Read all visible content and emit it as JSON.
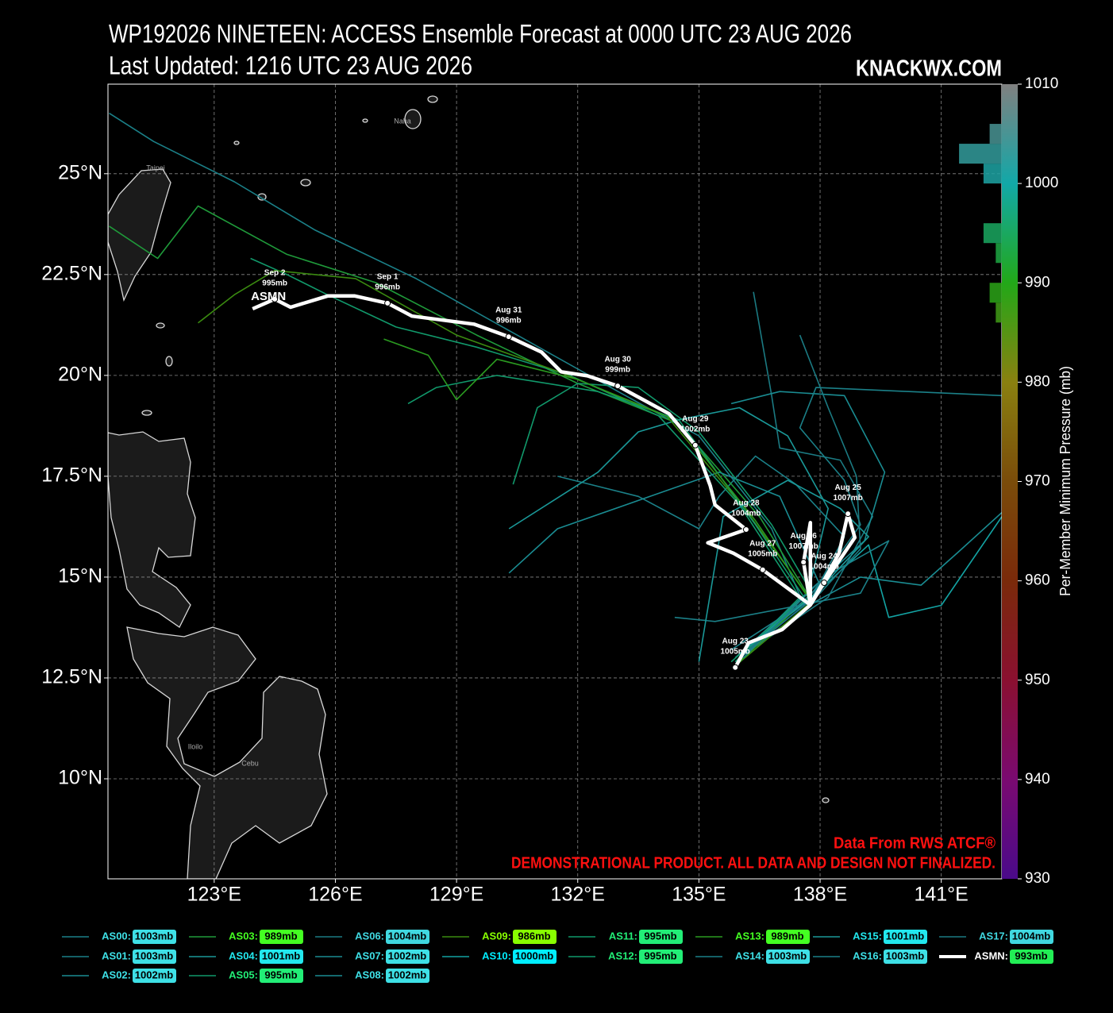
{
  "chart_data": {
    "type": "track-map",
    "title": "WP192026 NINETEEN: ACCESS Ensemble Forecast at 0000 UTC 23 AUG 2026",
    "subtitle": "Last Updated: 1216 UTC 23 AUG 2026",
    "brand": "KNACKWX.COM",
    "source": "Data From RWS ATCF®",
    "disclaimer": "DEMONSTRATIONAL PRODUCT. ALL DATA AND DESIGN NOT FINALIZED.",
    "places": [
      "Taipei",
      "Naha",
      "Iloilo",
      "Cebu"
    ],
    "xlim": [
      120.37,
      142.5
    ],
    "ylim": [
      7.52,
      27.22
    ],
    "xticks": [
      {
        "value": 123,
        "label": "123°E"
      },
      {
        "value": 126,
        "label": "126°E"
      },
      {
        "value": 129,
        "label": "129°E"
      },
      {
        "value": 132,
        "label": "132°E"
      },
      {
        "value": 135,
        "label": "135°E"
      },
      {
        "value": 138,
        "label": "138°E"
      },
      {
        "value": 141,
        "label": "141°E"
      }
    ],
    "yticks": [
      {
        "value": 10,
        "label": "10°N"
      },
      {
        "value": 12.5,
        "label": "12.5°N"
      },
      {
        "value": 15,
        "label": "15°N"
      },
      {
        "value": 17.5,
        "label": "17.5°N"
      },
      {
        "value": 20,
        "label": "20°N"
      },
      {
        "value": 22.5,
        "label": "22.5°N"
      },
      {
        "value": 25,
        "label": "25°N"
      }
    ],
    "grid": true,
    "colorbar": {
      "label": "Per-Member Minimum Pressure (mb)",
      "lim": [
        930,
        1010
      ],
      "ticks": [
        930,
        940,
        950,
        960,
        970,
        980,
        990,
        1000,
        1010
      ],
      "colormap": [
        "#4a0a8a",
        "#7a0a70",
        "#8a1030",
        "#7a2a0a",
        "#7a4c0a",
        "#8a8010",
        "#22a818",
        "#12a8a8",
        "#808080"
      ]
    },
    "histogram": {
      "bins": [
        986,
        988,
        990,
        992,
        994,
        996,
        998,
        1000,
        1002,
        1004,
        1006
      ],
      "counts": [
        1,
        2,
        0,
        1,
        3,
        0,
        0,
        3,
        7,
        2
      ]
    },
    "members": [
      {
        "label": "AS00:",
        "pressure": "1003mb",
        "color": "#1b8088",
        "badge": "#3ee0e6",
        "lon": [
          135.9,
          137.6,
          136.8,
          135.0,
          133.0,
          130.5,
          128.0,
          125.5,
          123.5,
          121.5,
          120.4
        ],
        "lat": [
          12.9,
          14.3,
          16.2,
          18.5,
          19.6,
          21.0,
          22.4,
          23.6,
          24.8,
          25.8,
          26.5
        ]
      },
      {
        "label": "AS01:",
        "pressure": "1003mb",
        "color": "#1b8088",
        "badge": "#3ee0e6",
        "lon": [
          135.8,
          137.8,
          138.6,
          137.4,
          136.4,
          135.5,
          135.0,
          133.5,
          131.5
        ],
        "lat": [
          13.2,
          14.5,
          16.0,
          17.3,
          18.0,
          17.0,
          16.2,
          17.0,
          17.5
        ]
      },
      {
        "label": "AS02:",
        "pressure": "1002mb",
        "color": "#1a8c92",
        "badge": "#3ee0e6",
        "lon": [
          136.0,
          137.9,
          139.0,
          140.5,
          141.4,
          142.5
        ],
        "lat": [
          13.0,
          14.4,
          15.0,
          14.8,
          15.6,
          16.6
        ]
      },
      {
        "label": "AS03:",
        "pressure": "989mb",
        "color": "#1f9a3a",
        "badge": "#44ff22",
        "lon": [
          135.9,
          137.8,
          136.5,
          134.5,
          132.0,
          129.5,
          127.0,
          124.8,
          122.6,
          121.6,
          120.4
        ],
        "lat": [
          12.8,
          14.4,
          16.5,
          18.8,
          19.8,
          21.0,
          22.3,
          23.0,
          24.2,
          22.9,
          23.7
        ]
      },
      {
        "label": "AS04:",
        "pressure": "1001mb",
        "color": "#1a9898",
        "badge": "#22e8ee",
        "lon": [
          136.1,
          137.7,
          138.2,
          137.2,
          136.0,
          134.5,
          133.5,
          132.5,
          130.3
        ],
        "lat": [
          13.1,
          14.6,
          16.7,
          18.5,
          19.2,
          18.9,
          18.6,
          17.6,
          16.2
        ]
      },
      {
        "label": "AS05:",
        "pressure": "995mb",
        "color": "#11996b",
        "badge": "#22ee77",
        "lon": [
          135.9,
          137.5,
          136.0,
          134.0,
          131.8,
          129.5,
          127.5,
          125.8,
          124.8,
          123.9
        ],
        "lat": [
          12.9,
          14.5,
          16.8,
          19.0,
          20.0,
          20.7,
          21.2,
          22.0,
          22.5,
          22.9
        ]
      },
      {
        "label": "AS06:",
        "pressure": "1004mb",
        "color": "#1b7a82",
        "badge": "#40d8e0",
        "lon": [
          136.0,
          138.2,
          139.3,
          138.5,
          137.0,
          136.8,
          136.35
        ],
        "lat": [
          13.0,
          14.5,
          16.5,
          17.9,
          18.2,
          19.5,
          22.07
        ]
      },
      {
        "label": "AS07:",
        "pressure": "1002mb",
        "color": "#1a8c92",
        "badge": "#3ee0e6",
        "lon": [
          135.9,
          138.0,
          139.1,
          139.6,
          138.6,
          137.0,
          135.8
        ],
        "lat": [
          13.0,
          14.9,
          15.9,
          17.6,
          19.5,
          19.6,
          19.3
        ]
      },
      {
        "label": "AS08:",
        "pressure": "1002mb",
        "color": "#1a8c92",
        "badge": "#3ee0e6",
        "lon": [
          136.2,
          138.0,
          137.0,
          135.5,
          133.5,
          131.5,
          130.3
        ],
        "lat": [
          13.1,
          14.8,
          17.0,
          17.6,
          16.9,
          16.2,
          15.1
        ]
      },
      {
        "label": "AS09:",
        "pressure": "986mb",
        "color": "#3a8a10",
        "badge": "#88ff00",
        "lon": [
          135.9,
          137.8,
          136.2,
          134.2,
          131.5,
          129.0,
          126.5,
          124.5,
          123.5,
          122.6
        ],
        "lat": [
          12.8,
          14.4,
          16.6,
          19.0,
          20.1,
          21.0,
          22.4,
          22.6,
          22.0,
          21.3
        ]
      },
      {
        "label": "AS10:",
        "pressure": "1000mb",
        "color": "#13a3a3",
        "badge": "#00eeff",
        "lon": [
          136.0,
          137.8,
          139.2,
          139.7,
          141.0,
          142.5
        ],
        "lat": [
          13.1,
          14.5,
          15.8,
          14.0,
          14.3,
          16.5
        ]
      },
      {
        "label": "AS11:",
        "pressure": "995mb",
        "color": "#11996b",
        "badge": "#22ee77",
        "lon": [
          136.0,
          137.8,
          136.8,
          135.0,
          133.5,
          132.0,
          131.0,
          130.4
        ],
        "lat": [
          12.9,
          14.6,
          16.3,
          18.6,
          19.7,
          19.8,
          19.2,
          17.3
        ]
      },
      {
        "label": "AS12:",
        "pressure": "995mb",
        "color": "#11996b",
        "badge": "#22ee77",
        "lon": [
          135.8,
          137.6,
          136.4,
          134.5,
          132.5,
          130.0,
          128.5,
          127.8
        ],
        "lat": [
          12.9,
          14.5,
          16.3,
          18.9,
          19.6,
          20.0,
          19.7,
          19.3
        ]
      },
      {
        "label": "AS13:",
        "pressure": "989mb",
        "color": "#2a9a20",
        "badge": "#44ff22",
        "lon": [
          135.9,
          137.7,
          136.4,
          134.4,
          132.0,
          130.0,
          129.0,
          128.3,
          127.2
        ],
        "lat": [
          12.8,
          14.5,
          16.4,
          18.9,
          19.9,
          20.4,
          19.4,
          20.5,
          20.9
        ]
      },
      {
        "label": "AS14:",
        "pressure": "1003mb",
        "color": "#1b8088",
        "badge": "#3ee0e6",
        "lon": [
          136.1,
          138.1,
          139.7,
          139.0,
          137.5,
          135.4,
          134.4
        ],
        "lat": [
          13.0,
          15.0,
          15.9,
          14.6,
          14.3,
          13.9,
          14.0
        ]
      },
      {
        "label": "AS15:",
        "pressure": "1001mb",
        "color": "#1a9898",
        "badge": "#22e8ee",
        "lon": [
          136.0,
          137.9,
          139.2,
          138.5,
          137.2,
          135.6,
          135.0
        ],
        "lat": [
          13.1,
          14.6,
          16.0,
          16.7,
          17.4,
          16.5,
          12.9
        ]
      },
      {
        "label": "AS16:",
        "pressure": "1003mb",
        "color": "#1b8088",
        "badge": "#3ee0e6",
        "lon": [
          136.0,
          137.8,
          139.0,
          138.6,
          137.5,
          137.9,
          140.2,
          142.5
        ],
        "lat": [
          13.0,
          14.6,
          16.3,
          17.4,
          18.7,
          19.7,
          19.6,
          19.5
        ]
      },
      {
        "label": "AS17:",
        "pressure": "1004mb",
        "color": "#1b7a82",
        "badge": "#40d8e0",
        "lon": [
          136.1,
          138.0,
          139.0,
          138.9,
          138.2,
          137.5
        ],
        "lat": [
          13.1,
          14.6,
          15.7,
          17.5,
          19.2,
          21.0
        ]
      }
    ],
    "mean": {
      "label": "ASMN:",
      "map_label": "ASMN",
      "pressure": "993mb",
      "color": "#ffffff",
      "badge": "#22ee55",
      "lon": [
        135.9,
        136.23,
        137.06,
        137.76,
        138.1,
        138.86,
        138.69,
        138.47,
        137.76,
        137.59,
        137.76,
        137.76,
        136.58,
        135.86,
        135.22,
        136.17,
        135.4,
        135.28,
        134.91,
        134.26,
        132.99,
        132.24,
        131.59,
        131.1,
        130.29,
        129.43,
        127.9,
        127.29,
        126.48,
        125.81,
        124.89,
        124.5,
        123.95
      ],
      "lat": [
        12.76,
        13.37,
        13.7,
        14.31,
        14.86,
        15.98,
        16.57,
        15.59,
        14.31,
        15.37,
        16.35,
        14.31,
        15.18,
        15.59,
        15.85,
        16.18,
        16.79,
        17.27,
        18.27,
        19.05,
        19.74,
        19.99,
        20.09,
        20.58,
        20.96,
        21.27,
        21.47,
        21.79,
        21.97,
        21.97,
        21.69,
        21.89,
        21.65
      ],
      "markers": [
        {
          "date": "Aug 23",
          "pressure": "1005mb",
          "lon": 135.9,
          "lat": 12.76
        },
        {
          "date": "Aug 24",
          "pressure": "1004mb",
          "lon": 138.1,
          "lat": 14.86
        },
        {
          "date": "Aug 25",
          "pressure": "1007mb",
          "lon": 138.69,
          "lat": 16.57
        },
        {
          "date": "Aug 26",
          "pressure": "1007mb",
          "lon": 137.59,
          "lat": 15.37
        },
        {
          "date": "Aug 27",
          "pressure": "1005mb",
          "lon": 136.58,
          "lat": 15.18
        },
        {
          "date": "Aug 28",
          "pressure": "1004mb",
          "lon": 136.17,
          "lat": 16.18
        },
        {
          "date": "Aug 29",
          "pressure": "1002mb",
          "lon": 134.91,
          "lat": 18.27
        },
        {
          "date": "Aug 30",
          "pressure": "999mb",
          "lon": 132.99,
          "lat": 19.74
        },
        {
          "date": "Aug 31",
          "pressure": "996mb",
          "lon": 130.29,
          "lat": 20.96
        },
        {
          "date": "Sep  1",
          "pressure": "996mb",
          "lon": 127.29,
          "lat": 21.79
        },
        {
          "date": "Sep  2",
          "pressure": "995mb",
          "lon": 124.5,
          "lat": 21.89
        }
      ]
    }
  }
}
